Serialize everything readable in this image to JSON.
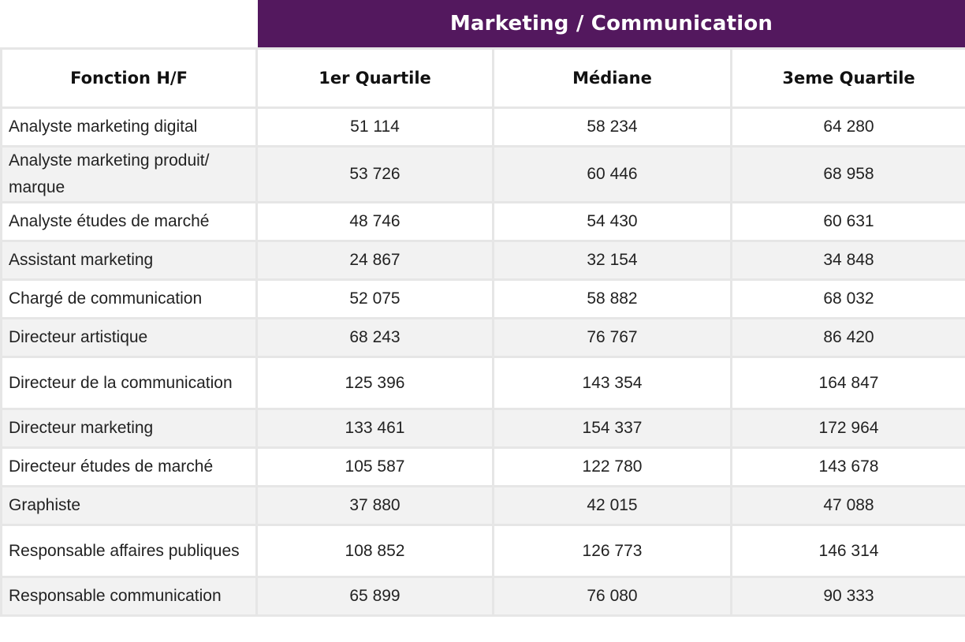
{
  "banner": {
    "title": "Marketing / Communication"
  },
  "table": {
    "headers": {
      "function": "Fonction H/F",
      "q1": "1er Quartile",
      "median": "Médiane",
      "q3": "3eme Quartile"
    },
    "rows": [
      {
        "function": "Analyste marketing digital",
        "q1": "51 114",
        "median": "58 234",
        "q3": "64 280"
      },
      {
        "function": "Analyste marketing produit/ marque",
        "q1": "53 726",
        "median": "60 446",
        "q3": "68 958"
      },
      {
        "function": "Analyste études de marché",
        "q1": "48 746",
        "median": "54 430",
        "q3": "60 631"
      },
      {
        "function": "Assistant marketing",
        "q1": "24 867",
        "median": "32 154",
        "q3": "34 848"
      },
      {
        "function": "Chargé de communication",
        "q1": "52 075",
        "median": "58 882",
        "q3": "68 032"
      },
      {
        "function": "Directeur artistique",
        "q1": "68 243",
        "median": "76 767",
        "q3": "86 420"
      },
      {
        "function": "Directeur de la communication",
        "q1": "125 396",
        "median": "143 354",
        "q3": "164 847"
      },
      {
        "function": "Directeur marketing",
        "q1": "133 461",
        "median": "154 337",
        "q3": "172 964"
      },
      {
        "function": "Directeur études de marché",
        "q1": "105 587",
        "median": "122 780",
        "q3": "143 678"
      },
      {
        "function": "Graphiste",
        "q1": "37 880",
        "median": "42 015",
        "q3": "47 088"
      },
      {
        "function": "Responsable affaires publiques",
        "q1": "108 852",
        "median": "126 773",
        "q3": "146 314"
      },
      {
        "function": "Responsable communication",
        "q1": "65 899",
        "median": "76 080",
        "q3": "90 333"
      }
    ]
  },
  "colors": {
    "banner_bg": "#53185e",
    "banner_text": "#ffffff",
    "stripe": "#f2f2f2",
    "grid": "#e6e6e6"
  }
}
